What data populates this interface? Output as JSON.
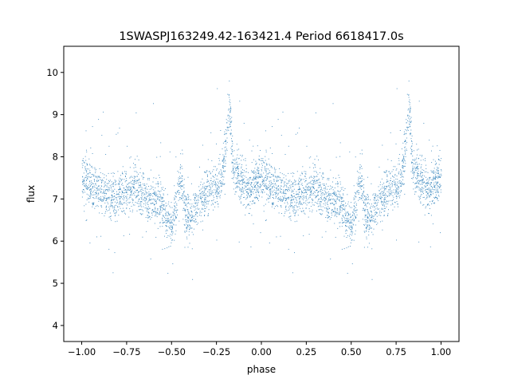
{
  "chart_data": {
    "type": "scatter",
    "title": "1SWASPJ163249.42-163421.4 Period 6618417.0s",
    "xlabel": "phase",
    "ylabel": "flux",
    "xlim": [
      -1.1,
      1.1
    ],
    "ylim": [
      3.62,
      10.62
    ],
    "xticks": [
      -1.0,
      -0.75,
      -0.5,
      -0.25,
      0.0,
      0.25,
      0.5,
      0.75,
      1.0
    ],
    "xtick_labels": [
      "−1.00",
      "−0.75",
      "−0.50",
      "−0.25",
      "0.00",
      "0.25",
      "0.50",
      "0.75",
      "1.00"
    ],
    "yticks": [
      4,
      5,
      6,
      7,
      8,
      9,
      10
    ],
    "ytick_labels": [
      "4",
      "5",
      "6",
      "7",
      "8",
      "9",
      "10"
    ],
    "grid": false,
    "point_color": "#1f77b4",
    "trend": {
      "phase": [
        0.0,
        0.03,
        0.06,
        0.1,
        0.15,
        0.2,
        0.25,
        0.3,
        0.35,
        0.4,
        0.44,
        0.47,
        0.5,
        0.52,
        0.55,
        0.58,
        0.6,
        0.63,
        0.67,
        0.7,
        0.75,
        0.78,
        0.8,
        0.82,
        0.84,
        0.87,
        0.9,
        0.93,
        0.96,
        1.0
      ],
      "flux": [
        7.6,
        7.5,
        7.3,
        7.2,
        7.1,
        7.1,
        7.2,
        7.3,
        7.0,
        6.95,
        6.9,
        6.6,
        6.3,
        6.8,
        7.5,
        6.6,
        6.5,
        6.8,
        7.0,
        7.2,
        7.3,
        7.6,
        8.2,
        9.3,
        7.8,
        7.5,
        7.5,
        7.2,
        7.4,
        7.6
      ]
    }
  }
}
